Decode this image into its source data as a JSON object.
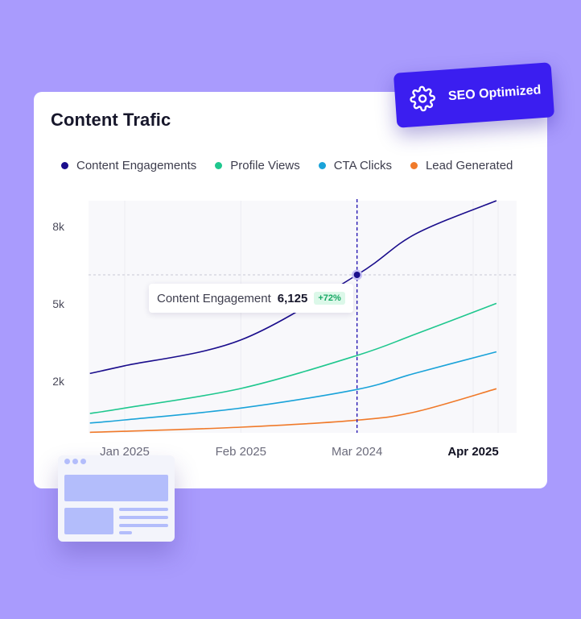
{
  "card": {
    "title": "Content Trafic"
  },
  "seo_badge": {
    "label": "SEO Optimized",
    "icon": "gear-icon"
  },
  "tooltip": {
    "label": "Content Engagement",
    "value": "6,125",
    "change": "+72%"
  },
  "colors": {
    "background": "#a99bfd",
    "accent": "#3b1ef0",
    "engagements": "#1a0d8c",
    "profile_views": "#1fc78e",
    "cta_clicks": "#1aa3d9",
    "lead_generated": "#f07a2a"
  },
  "chart_data": {
    "type": "line",
    "title": "Content Trafic",
    "x_labels": [
      "Jan 2025",
      "Feb 2025",
      "Mar 2024",
      "Apr 2025"
    ],
    "highlighted_x_label": "Apr 2025",
    "y_ticks": [
      {
        "value": 2000,
        "label": "2k"
      },
      {
        "value": 5000,
        "label": "5k"
      },
      {
        "value": 8000,
        "label": "8k"
      }
    ],
    "ylim": [
      0,
      9000
    ],
    "xlim": [
      -0.3,
      3.2
    ],
    "grid": true,
    "legend_position": "top",
    "series": [
      {
        "name": "Content Engagements",
        "color": "#1a0d8c",
        "points": [
          [
            -0.3,
            2300
          ],
          [
            0,
            2600
          ],
          [
            1,
            3600
          ],
          [
            2,
            6125
          ],
          [
            2.5,
            7700
          ],
          [
            3.2,
            9000
          ]
        ]
      },
      {
        "name": "Profile Views",
        "color": "#1fc78e",
        "points": [
          [
            -0.3,
            750
          ],
          [
            0,
            960
          ],
          [
            1,
            1720
          ],
          [
            2,
            3000
          ],
          [
            2.5,
            3820
          ],
          [
            3.2,
            5020
          ]
        ]
      },
      {
        "name": "CTA Clicks",
        "color": "#1aa3d9",
        "points": [
          [
            -0.3,
            380
          ],
          [
            0,
            500
          ],
          [
            1,
            960
          ],
          [
            2,
            1680
          ],
          [
            2.5,
            2310
          ],
          [
            3.2,
            3140
          ]
        ]
      },
      {
        "name": "Lead Generated",
        "color": "#f07a2a",
        "points": [
          [
            -0.3,
            20
          ],
          [
            0,
            60
          ],
          [
            1,
            220
          ],
          [
            2,
            490
          ],
          [
            2.5,
            810
          ],
          [
            3.2,
            1710
          ]
        ]
      }
    ],
    "hover": {
      "x": 2,
      "series": "Content Engagements",
      "value": 6125
    }
  }
}
